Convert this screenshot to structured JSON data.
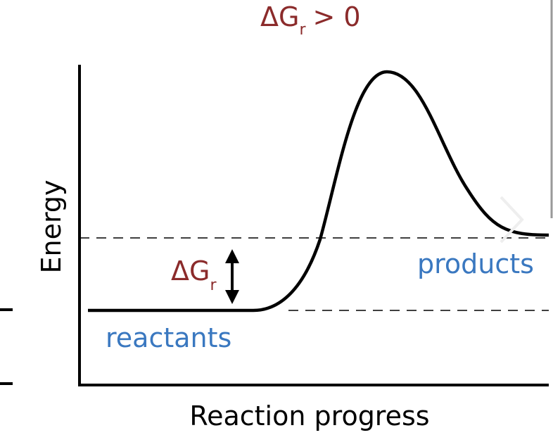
{
  "title": {
    "symbol": "ΔG",
    "subscript": "r",
    "relation": "> 0"
  },
  "axes": {
    "y_label": "Energy",
    "x_label": "Reaction progress"
  },
  "labels": {
    "reactants": "reactants",
    "products": "products",
    "delta": {
      "symbol": "ΔG",
      "subscript": "r"
    }
  }
}
